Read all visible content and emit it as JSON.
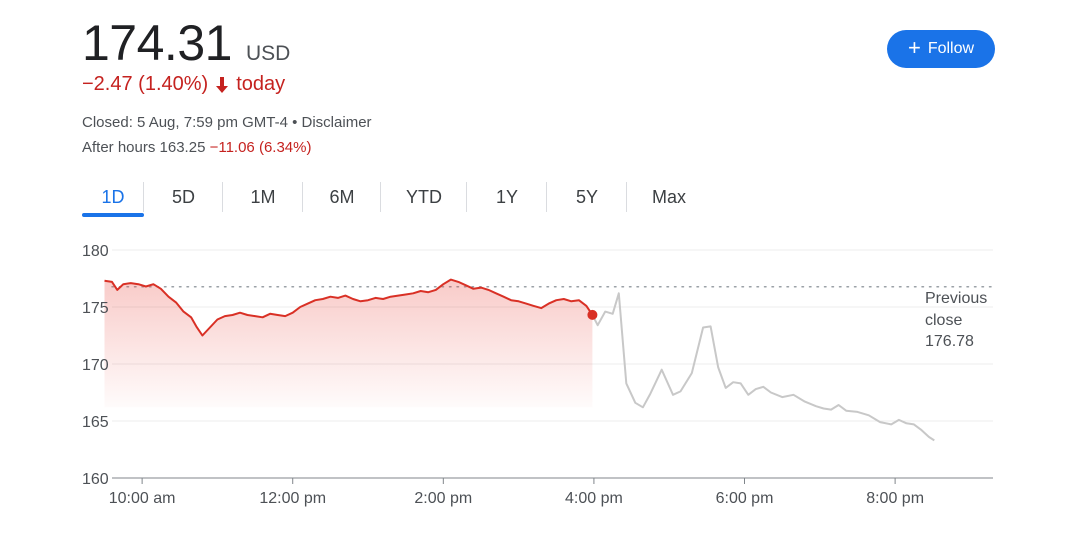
{
  "header": {
    "price": "174.31",
    "currency": "USD",
    "change": "−2.47 (1.40%)",
    "change_suffix": "today",
    "closed_text": "Closed: 5 Aug, 7:59 pm GMT-4 • Disclaimer",
    "after_hours_label": "After hours 163.25",
    "after_hours_change": "−11.06 (6.34%)",
    "follow_label": "Follow",
    "follow_icon": "plus-icon",
    "arrow_icon": "arrow-down-icon"
  },
  "tabs": [
    {
      "label": "1D",
      "active": true
    },
    {
      "label": "5D",
      "active": false
    },
    {
      "label": "1M",
      "active": false
    },
    {
      "label": "6M",
      "active": false
    },
    {
      "label": "YTD",
      "active": false
    },
    {
      "label": "1Y",
      "active": false
    },
    {
      "label": "5Y",
      "active": false
    },
    {
      "label": "Max",
      "active": false
    }
  ],
  "colors": {
    "regular": "#d93025",
    "after_hours": "#c8c8c8",
    "accent": "#1a73e8",
    "negative": "#c5221f"
  },
  "chart_data": {
    "type": "line",
    "y_ticks": [
      "180",
      "175",
      "170",
      "165",
      "160"
    ],
    "ylim": [
      160,
      180
    ],
    "x_ticks": [
      "10:00 am",
      "12:00 pm",
      "2:00 pm",
      "4:00 pm",
      "6:00 pm",
      "8:00 pm"
    ],
    "xlim": [
      9.6,
      21.3
    ],
    "previous_close": {
      "label": "Previous close",
      "value": "176.78"
    },
    "series": [
      {
        "points": [
          [
            9.5,
            177.3
          ],
          [
            9.6,
            177.2
          ],
          [
            9.67,
            176.5
          ],
          [
            9.75,
            177.0
          ],
          [
            9.85,
            177.1
          ],
          [
            9.95,
            177.0
          ],
          [
            10.05,
            176.8
          ],
          [
            10.15,
            177.0
          ],
          [
            10.25,
            176.6
          ],
          [
            10.35,
            175.9
          ],
          [
            10.45,
            175.4
          ],
          [
            10.55,
            174.6
          ],
          [
            10.65,
            174.1
          ],
          [
            10.72,
            173.3
          ],
          [
            10.8,
            172.5
          ],
          [
            10.9,
            173.2
          ],
          [
            11.0,
            173.9
          ],
          [
            11.1,
            174.2
          ],
          [
            11.2,
            174.3
          ],
          [
            11.3,
            174.5
          ],
          [
            11.4,
            174.3
          ],
          [
            11.5,
            174.2
          ],
          [
            11.6,
            174.1
          ],
          [
            11.7,
            174.4
          ],
          [
            11.8,
            174.3
          ],
          [
            11.9,
            174.2
          ],
          [
            12.0,
            174.5
          ],
          [
            12.1,
            175.0
          ],
          [
            12.2,
            175.3
          ],
          [
            12.3,
            175.6
          ],
          [
            12.4,
            175.7
          ],
          [
            12.5,
            175.9
          ],
          [
            12.6,
            175.8
          ],
          [
            12.7,
            176.0
          ],
          [
            12.8,
            175.7
          ],
          [
            12.9,
            175.5
          ],
          [
            13.0,
            175.6
          ],
          [
            13.1,
            175.8
          ],
          [
            13.2,
            175.7
          ],
          [
            13.3,
            175.9
          ],
          [
            13.4,
            176.0
          ],
          [
            13.5,
            176.1
          ],
          [
            13.6,
            176.2
          ],
          [
            13.7,
            176.4
          ],
          [
            13.8,
            176.3
          ],
          [
            13.9,
            176.5
          ],
          [
            14.0,
            177.0
          ],
          [
            14.1,
            177.4
          ],
          [
            14.2,
            177.2
          ],
          [
            14.3,
            176.9
          ],
          [
            14.4,
            176.6
          ],
          [
            14.5,
            176.7
          ],
          [
            14.6,
            176.5
          ],
          [
            14.7,
            176.2
          ],
          [
            14.8,
            175.9
          ],
          [
            14.9,
            175.6
          ],
          [
            15.0,
            175.5
          ],
          [
            15.1,
            175.3
          ],
          [
            15.2,
            175.1
          ],
          [
            15.3,
            174.9
          ],
          [
            15.4,
            175.3
          ],
          [
            15.5,
            175.6
          ],
          [
            15.6,
            175.7
          ],
          [
            15.7,
            175.5
          ],
          [
            15.8,
            175.6
          ],
          [
            15.9,
            175.1
          ],
          [
            15.98,
            174.31
          ]
        ]
      },
      {
        "points": [
          [
            15.98,
            174.31
          ],
          [
            16.05,
            173.4
          ],
          [
            16.15,
            174.6
          ],
          [
            16.25,
            174.4
          ],
          [
            16.33,
            176.2
          ],
          [
            16.43,
            168.3
          ],
          [
            16.55,
            166.6
          ],
          [
            16.65,
            166.2
          ],
          [
            16.75,
            167.4
          ],
          [
            16.9,
            169.5
          ],
          [
            17.05,
            167.3
          ],
          [
            17.15,
            167.6
          ],
          [
            17.3,
            169.2
          ],
          [
            17.45,
            173.2
          ],
          [
            17.55,
            173.3
          ],
          [
            17.65,
            169.7
          ],
          [
            17.75,
            167.9
          ],
          [
            17.85,
            168.4
          ],
          [
            17.95,
            168.3
          ],
          [
            18.05,
            167.3
          ],
          [
            18.15,
            167.8
          ],
          [
            18.25,
            168.0
          ],
          [
            18.35,
            167.5
          ],
          [
            18.5,
            167.1
          ],
          [
            18.65,
            167.3
          ],
          [
            18.8,
            166.7
          ],
          [
            18.95,
            166.3
          ],
          [
            19.05,
            166.1
          ],
          [
            19.15,
            166.0
          ],
          [
            19.25,
            166.4
          ],
          [
            19.35,
            165.9
          ],
          [
            19.5,
            165.8
          ],
          [
            19.65,
            165.5
          ],
          [
            19.8,
            164.9
          ],
          [
            19.95,
            164.7
          ],
          [
            20.05,
            165.1
          ],
          [
            20.15,
            164.8
          ],
          [
            20.25,
            164.7
          ],
          [
            20.35,
            164.2
          ],
          [
            20.45,
            163.6
          ],
          [
            20.52,
            163.3
          ]
        ]
      }
    ],
    "last_point": {
      "x": 15.98,
      "y": 174.31
    }
  }
}
